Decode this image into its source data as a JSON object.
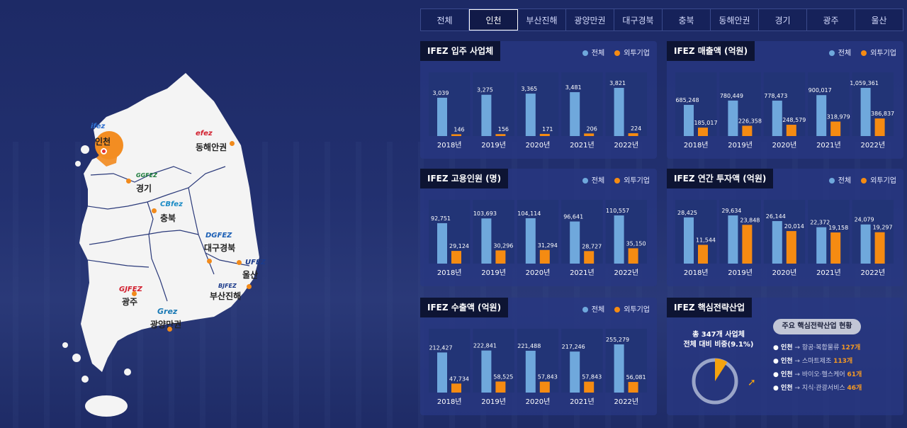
{
  "tabs": [
    {
      "label": "전체",
      "active": false
    },
    {
      "label": "인천",
      "active": true
    },
    {
      "label": "부산진해",
      "active": false
    },
    {
      "label": "광양만권",
      "active": false
    },
    {
      "label": "대구경북",
      "active": false
    },
    {
      "label": "충북",
      "active": false
    },
    {
      "label": "동해안권",
      "active": false
    },
    {
      "label": "경기",
      "active": false
    },
    {
      "label": "광주",
      "active": false
    },
    {
      "label": "울산",
      "active": false
    }
  ],
  "map": {
    "regions": [
      {
        "label": "인천",
        "logo": "ifez"
      },
      {
        "label": "동해안권",
        "logo": "efez"
      },
      {
        "label": "경기",
        "logo": "GGFEZ"
      },
      {
        "label": "충북",
        "logo": "CBfez"
      },
      {
        "label": "대구경북",
        "logo": "DGFEZ"
      },
      {
        "label": "울산",
        "logo": "UFEZ"
      },
      {
        "label": "부산진해",
        "logo": "BJFEZ"
      },
      {
        "label": "광주",
        "logo": "GJFEZ"
      },
      {
        "label": "광양만권",
        "logo": "Grez"
      }
    ]
  },
  "legend": {
    "total": "전체",
    "foreign": "외투기업"
  },
  "colors": {
    "total": "#6fa8dc",
    "foreign": "#f58b12",
    "background": "#1c2a66"
  },
  "panels": {
    "companies": {
      "title": "IFEZ 입주 사업체"
    },
    "sales": {
      "title": "IFEZ 매출액 (억원)"
    },
    "employees": {
      "title": "IFEZ 고용인원 (명)"
    },
    "investment": {
      "title": "IFEZ 연간 투자액 (억원)"
    },
    "exports": {
      "title": "IFEZ 수출액 (억원)"
    },
    "industry": {
      "title": "IFEZ 핵심전략산업",
      "summary_line1": "총 347개 사업체",
      "summary_line2": "전체 대비 비중(9.1%)",
      "button": "주요 핵심전략산업 현황",
      "share": 0.091,
      "items": [
        {
          "region": "● 인천",
          "name": "→ 항공·복합물류",
          "count": "127개"
        },
        {
          "region": "● 인천",
          "name": "→ 스마트제조",
          "count": "113개"
        },
        {
          "region": "● 인천",
          "name": "→ 바이오·헬스케어",
          "count": "61개"
        },
        {
          "region": "● 인천",
          "name": "→ 지식·관광서비스",
          "count": "46개"
        }
      ]
    }
  },
  "chart_data": [
    {
      "type": "bar",
      "title": "IFEZ 입주 사업체",
      "categories": [
        "2018년",
        "2019년",
        "2020년",
        "2021년",
        "2022년"
      ],
      "series": [
        {
          "name": "전체",
          "values": [
            3039,
            3275,
            3365,
            3481,
            3821
          ],
          "labels": [
            "3,039",
            "3,275",
            "3,365",
            "3,481",
            "3,821"
          ]
        },
        {
          "name": "외투기업",
          "values": [
            146,
            156,
            171,
            206,
            224
          ],
          "labels": [
            "146",
            "156",
            "171",
            "206",
            "224"
          ]
        }
      ]
    },
    {
      "type": "bar",
      "title": "IFEZ 매출액 (억원)",
      "categories": [
        "2018년",
        "2019년",
        "2020년",
        "2021년",
        "2022년"
      ],
      "series": [
        {
          "name": "전체",
          "values": [
            685248,
            780449,
            778473,
            900017,
            1059361
          ],
          "labels": [
            "685,248",
            "780,449",
            "778,473",
            "900,017",
            "1,059,361"
          ]
        },
        {
          "name": "외투기업",
          "values": [
            185017,
            226358,
            248579,
            318979,
            386837
          ],
          "labels": [
            "185,017",
            "226,358",
            "248,579",
            "318,979",
            "386,837"
          ]
        }
      ]
    },
    {
      "type": "bar",
      "title": "IFEZ 고용인원 (명)",
      "categories": [
        "2018년",
        "2019년",
        "2020년",
        "2021년",
        "2022년"
      ],
      "series": [
        {
          "name": "전체",
          "values": [
            92751,
            103693,
            104114,
            96641,
            110557
          ],
          "labels": [
            "92,751",
            "103,693",
            "104,114",
            "96,641",
            "110,557"
          ]
        },
        {
          "name": "외투기업",
          "values": [
            29124,
            30296,
            31294,
            28727,
            35150
          ],
          "labels": [
            "29,124",
            "30,296",
            "31,294",
            "28,727",
            "35,150"
          ]
        }
      ]
    },
    {
      "type": "bar",
      "title": "IFEZ 연간 투자액 (억원)",
      "categories": [
        "2018년",
        "2019년",
        "2020년",
        "2021년",
        "2022년"
      ],
      "series": [
        {
          "name": "전체",
          "values": [
            28425,
            29634,
            26144,
            22372,
            24079
          ],
          "labels": [
            "28,425",
            "29,634",
            "26,144",
            "22,372",
            "24,079"
          ]
        },
        {
          "name": "외투기업",
          "values": [
            11544,
            23848,
            20014,
            19158,
            19297
          ],
          "labels": [
            "11,544",
            "23,848",
            "20,014",
            "19,158",
            "19,297"
          ]
        }
      ]
    },
    {
      "type": "bar",
      "title": "IFEZ 수출액 (억원)",
      "categories": [
        "2018년",
        "2019년",
        "2020년",
        "2021년",
        "2022년"
      ],
      "series": [
        {
          "name": "전체",
          "values": [
            212427,
            222841,
            221488,
            217246,
            255279
          ],
          "labels": [
            "212,427",
            "222,841",
            "221,488",
            "217,246",
            "255,279"
          ]
        },
        {
          "name": "외투기업",
          "values": [
            47734,
            58525,
            57843,
            57843,
            56081
          ],
          "labels": [
            "47,734",
            "58,525",
            "57,843",
            "57,843",
            "56,081"
          ]
        }
      ]
    }
  ]
}
